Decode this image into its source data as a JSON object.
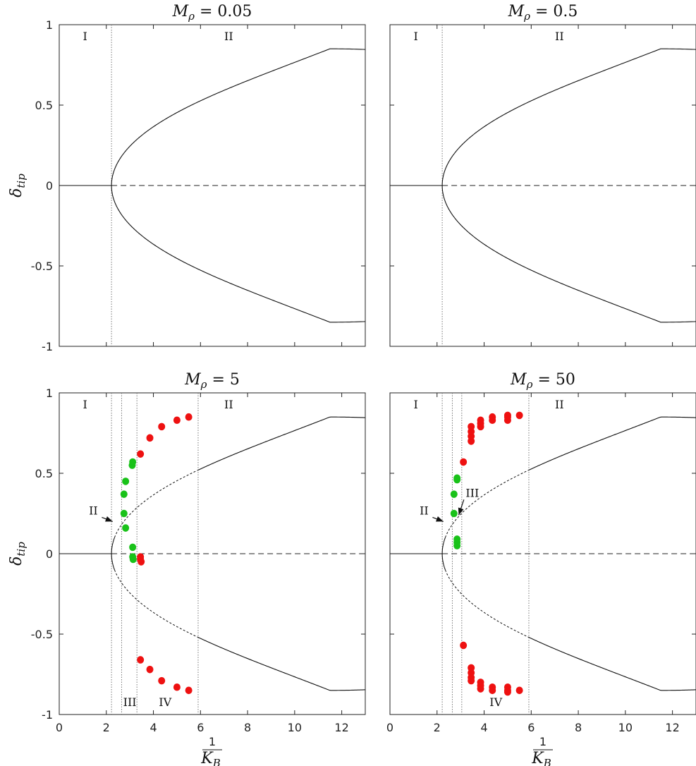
{
  "chart_data": [
    {
      "type": "line",
      "title": "M_ρ = 0.05",
      "title_main": "M",
      "title_sub": "ρ",
      "title_rest": " = 0.05",
      "ylabel_main": "δ",
      "ylabel_sub": "tip",
      "xlim": [
        0,
        13
      ],
      "ylim": [
        -1,
        1
      ],
      "xticks": [
        0,
        2,
        4,
        6,
        8,
        10,
        12
      ],
      "xtick_labels": [
        "",
        "",
        "",
        "",
        "",
        "",
        ""
      ],
      "yticks": [
        -1,
        -0.5,
        0,
        0.5,
        1
      ],
      "ytick_labels": [
        "-1",
        "-0.5",
        "0",
        "0.5",
        "1"
      ],
      "show_xlabel": false,
      "show_ylabel": true,
      "bifurcation_x": 2.22,
      "vlines": [
        2.22
      ],
      "region_labels": [
        {
          "text": "I",
          "x": 1.1,
          "y": 0.93
        },
        {
          "text": "II",
          "x": 7.2,
          "y": 0.93
        }
      ],
      "branch": {
        "peak": 0.85,
        "peak_x": 11.5
      },
      "dashed_upto": null,
      "stable_points": [],
      "unstable_points": [],
      "arrows": []
    },
    {
      "type": "line",
      "title": "M_ρ = 0.5",
      "title_main": "M",
      "title_sub": "ρ",
      "title_rest": " = 0.5",
      "ylabel_main": "",
      "ylabel_sub": "",
      "xlim": [
        0,
        13
      ],
      "ylim": [
        -1,
        1
      ],
      "xticks": [
        0,
        2,
        4,
        6,
        8,
        10,
        12
      ],
      "xtick_labels": [
        "",
        "",
        "",
        "",
        "",
        "",
        ""
      ],
      "yticks": [
        -1,
        -0.5,
        0,
        0.5,
        1
      ],
      "ytick_labels": [
        "",
        "",
        "",
        "",
        ""
      ],
      "show_xlabel": false,
      "show_ylabel": false,
      "bifurcation_x": 2.22,
      "vlines": [
        2.22
      ],
      "region_labels": [
        {
          "text": "I",
          "x": 1.1,
          "y": 0.93
        },
        {
          "text": "II",
          "x": 7.2,
          "y": 0.93
        }
      ],
      "branch": {
        "peak": 0.85,
        "peak_x": 11.5
      },
      "dashed_upto": null,
      "stable_points": [],
      "unstable_points": [],
      "arrows": []
    },
    {
      "type": "scatter",
      "title": "M_ρ = 5",
      "title_main": "M",
      "title_sub": "ρ",
      "title_rest": " = 5",
      "ylabel_main": "δ",
      "ylabel_sub": "tip",
      "xlabel_num": "1",
      "xlabel_den_main": "K",
      "xlabel_den_sub": "B",
      "xlim": [
        0,
        13
      ],
      "ylim": [
        -1,
        1
      ],
      "xticks": [
        0,
        2,
        4,
        6,
        8,
        10,
        12
      ],
      "xtick_labels": [
        "0",
        "2",
        "4",
        "6",
        "8",
        "10",
        "12"
      ],
      "yticks": [
        -1,
        -0.5,
        0,
        0.5,
        1
      ],
      "ytick_labels": [
        "-1",
        "-0.5",
        "0",
        "0.5",
        "1"
      ],
      "show_xlabel": true,
      "show_ylabel": true,
      "bifurcation_x": 2.22,
      "vlines": [
        2.22,
        2.65,
        3.3,
        5.9
      ],
      "region_labels": [
        {
          "text": "I",
          "x": 1.1,
          "y": 0.93
        },
        {
          "text": "II",
          "x": 7.2,
          "y": 0.93
        },
        {
          "text": "III",
          "x": 3.0,
          "y": -0.92
        },
        {
          "text": "IV",
          "x": 4.5,
          "y": -0.92
        }
      ],
      "branch": {
        "peak": 0.85,
        "peak_x": 11.5
      },
      "dashed_upto": 5.9,
      "stable_points": [
        [
          2.75,
          0.37
        ],
        [
          2.82,
          0.45
        ],
        [
          2.75,
          0.25
        ],
        [
          2.82,
          0.16
        ],
        [
          3.1,
          0.55
        ],
        [
          3.12,
          0.57
        ],
        [
          3.12,
          0.04
        ],
        [
          3.12,
          -0.02
        ],
        [
          3.14,
          -0.035
        ]
      ],
      "unstable_points": [
        [
          3.45,
          0.62
        ],
        [
          3.85,
          0.72
        ],
        [
          4.35,
          0.79
        ],
        [
          5.0,
          0.83
        ],
        [
          5.5,
          0.85
        ],
        [
          3.45,
          -0.02
        ],
        [
          3.45,
          -0.035
        ],
        [
          3.48,
          -0.05
        ],
        [
          3.45,
          -0.66
        ],
        [
          3.85,
          -0.72
        ],
        [
          4.35,
          -0.79
        ],
        [
          5.0,
          -0.83
        ],
        [
          5.5,
          -0.85
        ]
      ],
      "arrows": [
        {
          "text": "II",
          "label_x": 1.45,
          "label_y": 0.27,
          "tip_x": 2.27,
          "tip_y": 0.2
        }
      ]
    },
    {
      "type": "scatter",
      "title": "M_ρ = 50",
      "title_main": "M",
      "title_sub": "ρ",
      "title_rest": " = 50",
      "ylabel_main": "",
      "ylabel_sub": "",
      "xlabel_num": "1",
      "xlabel_den_main": "K",
      "xlabel_den_sub": "B",
      "xlim": [
        0,
        13
      ],
      "ylim": [
        -1,
        1
      ],
      "xticks": [
        0,
        2,
        4,
        6,
        8,
        10,
        12
      ],
      "xtick_labels": [
        "0",
        "2",
        "4",
        "6",
        "8",
        "10",
        "12"
      ],
      "yticks": [
        -1,
        -0.5,
        0,
        0.5,
        1
      ],
      "ytick_labels": [
        "",
        "",
        "",
        "",
        ""
      ],
      "show_xlabel": true,
      "show_ylabel": false,
      "bifurcation_x": 2.22,
      "vlines": [
        2.22,
        2.65,
        3.05,
        5.9
      ],
      "region_labels": [
        {
          "text": "I",
          "x": 1.1,
          "y": 0.93
        },
        {
          "text": "II",
          "x": 7.2,
          "y": 0.93
        },
        {
          "text": "IV",
          "x": 4.5,
          "y": -0.92
        }
      ],
      "branch": {
        "peak": 0.85,
        "peak_x": 11.5
      },
      "dashed_upto": 5.9,
      "stable_points": [
        [
          2.72,
          0.37
        ],
        [
          2.72,
          0.25
        ],
        [
          2.85,
          0.46
        ],
        [
          2.85,
          0.47
        ],
        [
          2.85,
          0.09
        ],
        [
          2.85,
          0.07
        ],
        [
          2.85,
          0.05
        ]
      ],
      "unstable_points": [
        [
          3.12,
          0.57
        ],
        [
          3.45,
          0.7
        ],
        [
          3.45,
          0.73
        ],
        [
          3.45,
          0.76
        ],
        [
          3.45,
          0.79
        ],
        [
          3.85,
          0.79
        ],
        [
          3.85,
          0.81
        ],
        [
          3.85,
          0.83
        ],
        [
          4.35,
          0.83
        ],
        [
          4.35,
          0.85
        ],
        [
          5.0,
          0.83
        ],
        [
          5.0,
          0.85
        ],
        [
          5.0,
          0.86
        ],
        [
          5.5,
          0.86
        ],
        [
          3.12,
          -0.57
        ],
        [
          3.45,
          -0.71
        ],
        [
          3.45,
          -0.74
        ],
        [
          3.45,
          -0.77
        ],
        [
          3.45,
          -0.79
        ],
        [
          3.85,
          -0.8
        ],
        [
          3.85,
          -0.82
        ],
        [
          3.85,
          -0.84
        ],
        [
          4.35,
          -0.83
        ],
        [
          4.35,
          -0.85
        ],
        [
          5.0,
          -0.83
        ],
        [
          5.0,
          -0.85
        ],
        [
          5.0,
          -0.86
        ],
        [
          5.5,
          -0.85
        ]
      ],
      "arrows": [
        {
          "text": "II",
          "label_x": 1.45,
          "label_y": 0.27,
          "tip_x": 2.27,
          "tip_y": 0.2
        },
        {
          "text": "III",
          "label_x": 3.5,
          "label_y": 0.38,
          "tip_x": 2.92,
          "tip_y": 0.24
        }
      ]
    }
  ],
  "colors": {
    "stable": "#19c219",
    "unstable": "#ee1111",
    "line": "#111111"
  }
}
